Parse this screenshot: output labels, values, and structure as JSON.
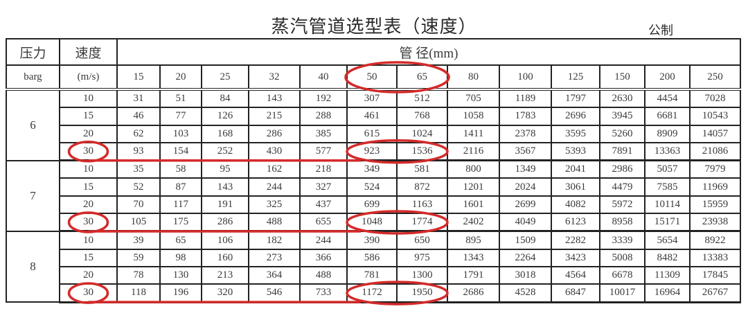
{
  "title": "蒸汽管道选型表（速度）",
  "unit_system": "公制",
  "header": {
    "pressure": "压力",
    "velocity": "速度",
    "pipe_diameter": "管 径(mm)",
    "pressure_unit": "barg",
    "velocity_unit": "(m/s)",
    "diameters": [
      "15",
      "20",
      "25",
      "32",
      "40",
      "50",
      "65",
      "80",
      "100",
      "125",
      "150",
      "200",
      "250"
    ]
  },
  "groups": [
    {
      "pressure": "6",
      "rows": [
        {
          "v": "10",
          "vals": [
            "31",
            "51",
            "84",
            "143",
            "192",
            "307",
            "512",
            "705",
            "1189",
            "1797",
            "2630",
            "4454",
            "7028"
          ]
        },
        {
          "v": "15",
          "vals": [
            "46",
            "77",
            "126",
            "215",
            "288",
            "461",
            "768",
            "1058",
            "1783",
            "2696",
            "3945",
            "6681",
            "10543"
          ]
        },
        {
          "v": "20",
          "vals": [
            "62",
            "103",
            "168",
            "286",
            "385",
            "615",
            "1024",
            "1411",
            "2378",
            "3595",
            "5260",
            "8909",
            "14057"
          ]
        },
        {
          "v": "30",
          "vals": [
            "93",
            "154",
            "252",
            "430",
            "577",
            "923",
            "1536",
            "2116",
            "3567",
            "5393",
            "7891",
            "13363",
            "21086"
          ]
        }
      ]
    },
    {
      "pressure": "7",
      "rows": [
        {
          "v": "10",
          "vals": [
            "35",
            "58",
            "95",
            "162",
            "218",
            "349",
            "581",
            "800",
            "1349",
            "2041",
            "2986",
            "5057",
            "7979"
          ]
        },
        {
          "v": "15",
          "vals": [
            "52",
            "87",
            "143",
            "244",
            "327",
            "524",
            "872",
            "1201",
            "2024",
            "3061",
            "4479",
            "7585",
            "11969"
          ]
        },
        {
          "v": "20",
          "vals": [
            "70",
            "117",
            "191",
            "325",
            "437",
            "699",
            "1163",
            "1601",
            "2699",
            "4082",
            "5972",
            "10114",
            "15959"
          ]
        },
        {
          "v": "30",
          "vals": [
            "105",
            "175",
            "286",
            "488",
            "655",
            "1048",
            "1774",
            "2402",
            "4049",
            "6123",
            "8958",
            "15171",
            "23938"
          ]
        }
      ]
    },
    {
      "pressure": "8",
      "rows": [
        {
          "v": "10",
          "vals": [
            "39",
            "65",
            "106",
            "182",
            "244",
            "390",
            "650",
            "895",
            "1509",
            "2282",
            "3339",
            "5654",
            "8922"
          ]
        },
        {
          "v": "15",
          "vals": [
            "59",
            "98",
            "160",
            "273",
            "366",
            "586",
            "975",
            "1343",
            "2264",
            "3423",
            "5008",
            "8482",
            "13383"
          ]
        },
        {
          "v": "20",
          "vals": [
            "78",
            "130",
            "213",
            "364",
            "488",
            "781",
            "1300",
            "1791",
            "3018",
            "4564",
            "6678",
            "11309",
            "17845"
          ]
        },
        {
          "v": "30",
          "vals": [
            "118",
            "196",
            "320",
            "546",
            "733",
            "1172",
            "1950",
            "2686",
            "4528",
            "6847",
            "10017",
            "16964",
            "26767"
          ]
        }
      ]
    }
  ],
  "highlight_color": "#d42a2a"
}
